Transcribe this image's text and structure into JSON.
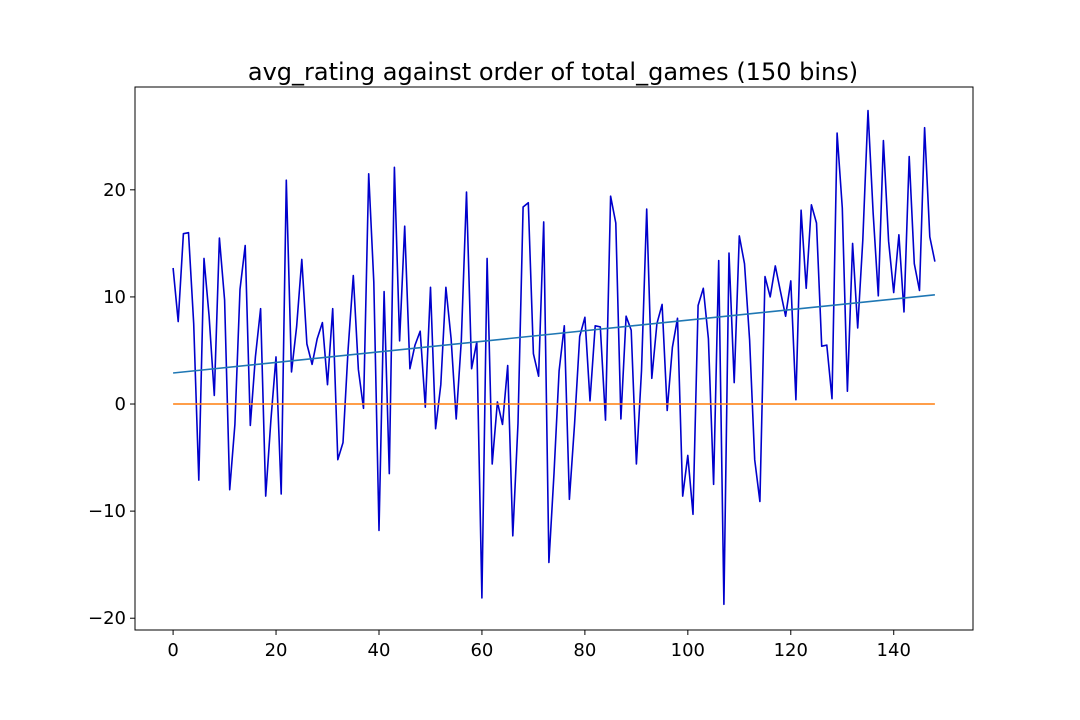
{
  "chart_data": {
    "type": "line",
    "title": "avg_rating against order of total_games (150 bins)",
    "xlabel": "",
    "ylabel": "",
    "xlim": [
      -7.4,
      155.4
    ],
    "ylim": [
      -21.1,
      29.6
    ],
    "xticks": [
      0,
      20,
      40,
      60,
      80,
      100,
      120,
      140
    ],
    "yticks": [
      -20,
      -10,
      0,
      10,
      20
    ],
    "xtick_labels": [
      "0",
      "20",
      "40",
      "60",
      "80",
      "100",
      "120",
      "140"
    ],
    "ytick_labels": [
      "−20",
      "−10",
      "0",
      "10",
      "20"
    ],
    "grid": false,
    "legend": "none",
    "series": [
      {
        "color": "#0000cc",
        "x": [
          0,
          1,
          2,
          3,
          4,
          5,
          6,
          7,
          8,
          9,
          10,
          11,
          12,
          13,
          14,
          15,
          16,
          17,
          18,
          19,
          20,
          21,
          22,
          23,
          24,
          25,
          26,
          27,
          28,
          29,
          30,
          31,
          32,
          33,
          34,
          35,
          36,
          37,
          38,
          39,
          40,
          41,
          42,
          43,
          44,
          45,
          46,
          47,
          48,
          49,
          50,
          51,
          52,
          53,
          54,
          55,
          56,
          57,
          58,
          59,
          60,
          61,
          62,
          63,
          64,
          65,
          66,
          67,
          68,
          69,
          70,
          71,
          72,
          73,
          74,
          75,
          76,
          77,
          78,
          79,
          80,
          81,
          82,
          83,
          84,
          85,
          86,
          87,
          88,
          89,
          90,
          91,
          92,
          93,
          94,
          95,
          96,
          97,
          98,
          99,
          100,
          101,
          102,
          103,
          104,
          105,
          106,
          107,
          108,
          109,
          110,
          111,
          112,
          113,
          114,
          115,
          116,
          117,
          118,
          119,
          120,
          121,
          122,
          123,
          124,
          125,
          126,
          127,
          128,
          129,
          130,
          131,
          132,
          133,
          134,
          135,
          136,
          137,
          138,
          139,
          140,
          141,
          142,
          143,
          144,
          145,
          146,
          147,
          148
        ],
        "y": [
          12.7,
          7.7,
          15.9,
          16.0,
          7.5,
          -7.1,
          13.6,
          8.2,
          0.8,
          15.5,
          9.7,
          -8.0,
          -1.9,
          10.7,
          14.8,
          -2.0,
          4.4,
          8.9,
          -8.6,
          -1.5,
          4.4,
          -8.4,
          20.9,
          3.0,
          7.2,
          13.5,
          5.6,
          3.7,
          6.1,
          7.6,
          1.8,
          8.9,
          -5.2,
          -3.6,
          5.1,
          12.0,
          3.2,
          -0.4,
          21.5,
          11.4,
          -11.8,
          10.5,
          -6.5,
          22.1,
          5.9,
          16.6,
          3.3,
          5.5,
          6.8,
          -0.3,
          10.9,
          -2.3,
          1.8,
          10.9,
          6.1,
          -1.4,
          5.9,
          19.8,
          3.3,
          5.8,
          -18.1,
          13.6,
          -5.6,
          0.2,
          -1.9,
          3.6,
          -12.3,
          -1.8,
          18.4,
          18.8,
          4.7,
          2.6,
          17.0,
          -14.8,
          -6.5,
          3.1,
          7.3,
          -8.9,
          -1.8,
          6.3,
          8.1,
          0.3,
          7.3,
          7.2,
          -1.5,
          19.4,
          16.9,
          -1.4,
          8.2,
          6.9,
          -5.6,
          3.1,
          18.2,
          2.4,
          7.5,
          9.3,
          -0.6,
          5.3,
          8.0,
          -8.6,
          -4.8,
          -10.3,
          9.2,
          10.8,
          6.1,
          -7.5,
          13.4,
          -18.7,
          14.1,
          2.0,
          15.7,
          13.1,
          6.0,
          -5.2,
          -9.1,
          11.9,
          10.0,
          12.9,
          10.5,
          8.2,
          11.5,
          0.4,
          18.1,
          10.8,
          18.6,
          16.9,
          5.4,
          5.5,
          0.5,
          25.3,
          18.3,
          1.2,
          15.0,
          7.1,
          15.3,
          27.4,
          17.9,
          10.1,
          24.6,
          15.2,
          10.4,
          15.8,
          8.6,
          23.1,
          13.1,
          10.6,
          25.8,
          15.6,
          13.3
        ]
      },
      {
        "color": "#1f77b4",
        "x": [
          0,
          148
        ],
        "y": [
          2.9,
          10.2
        ]
      },
      {
        "color": "#ff7f0e",
        "x": [
          0,
          148
        ],
        "y": [
          0,
          0
        ]
      }
    ]
  }
}
